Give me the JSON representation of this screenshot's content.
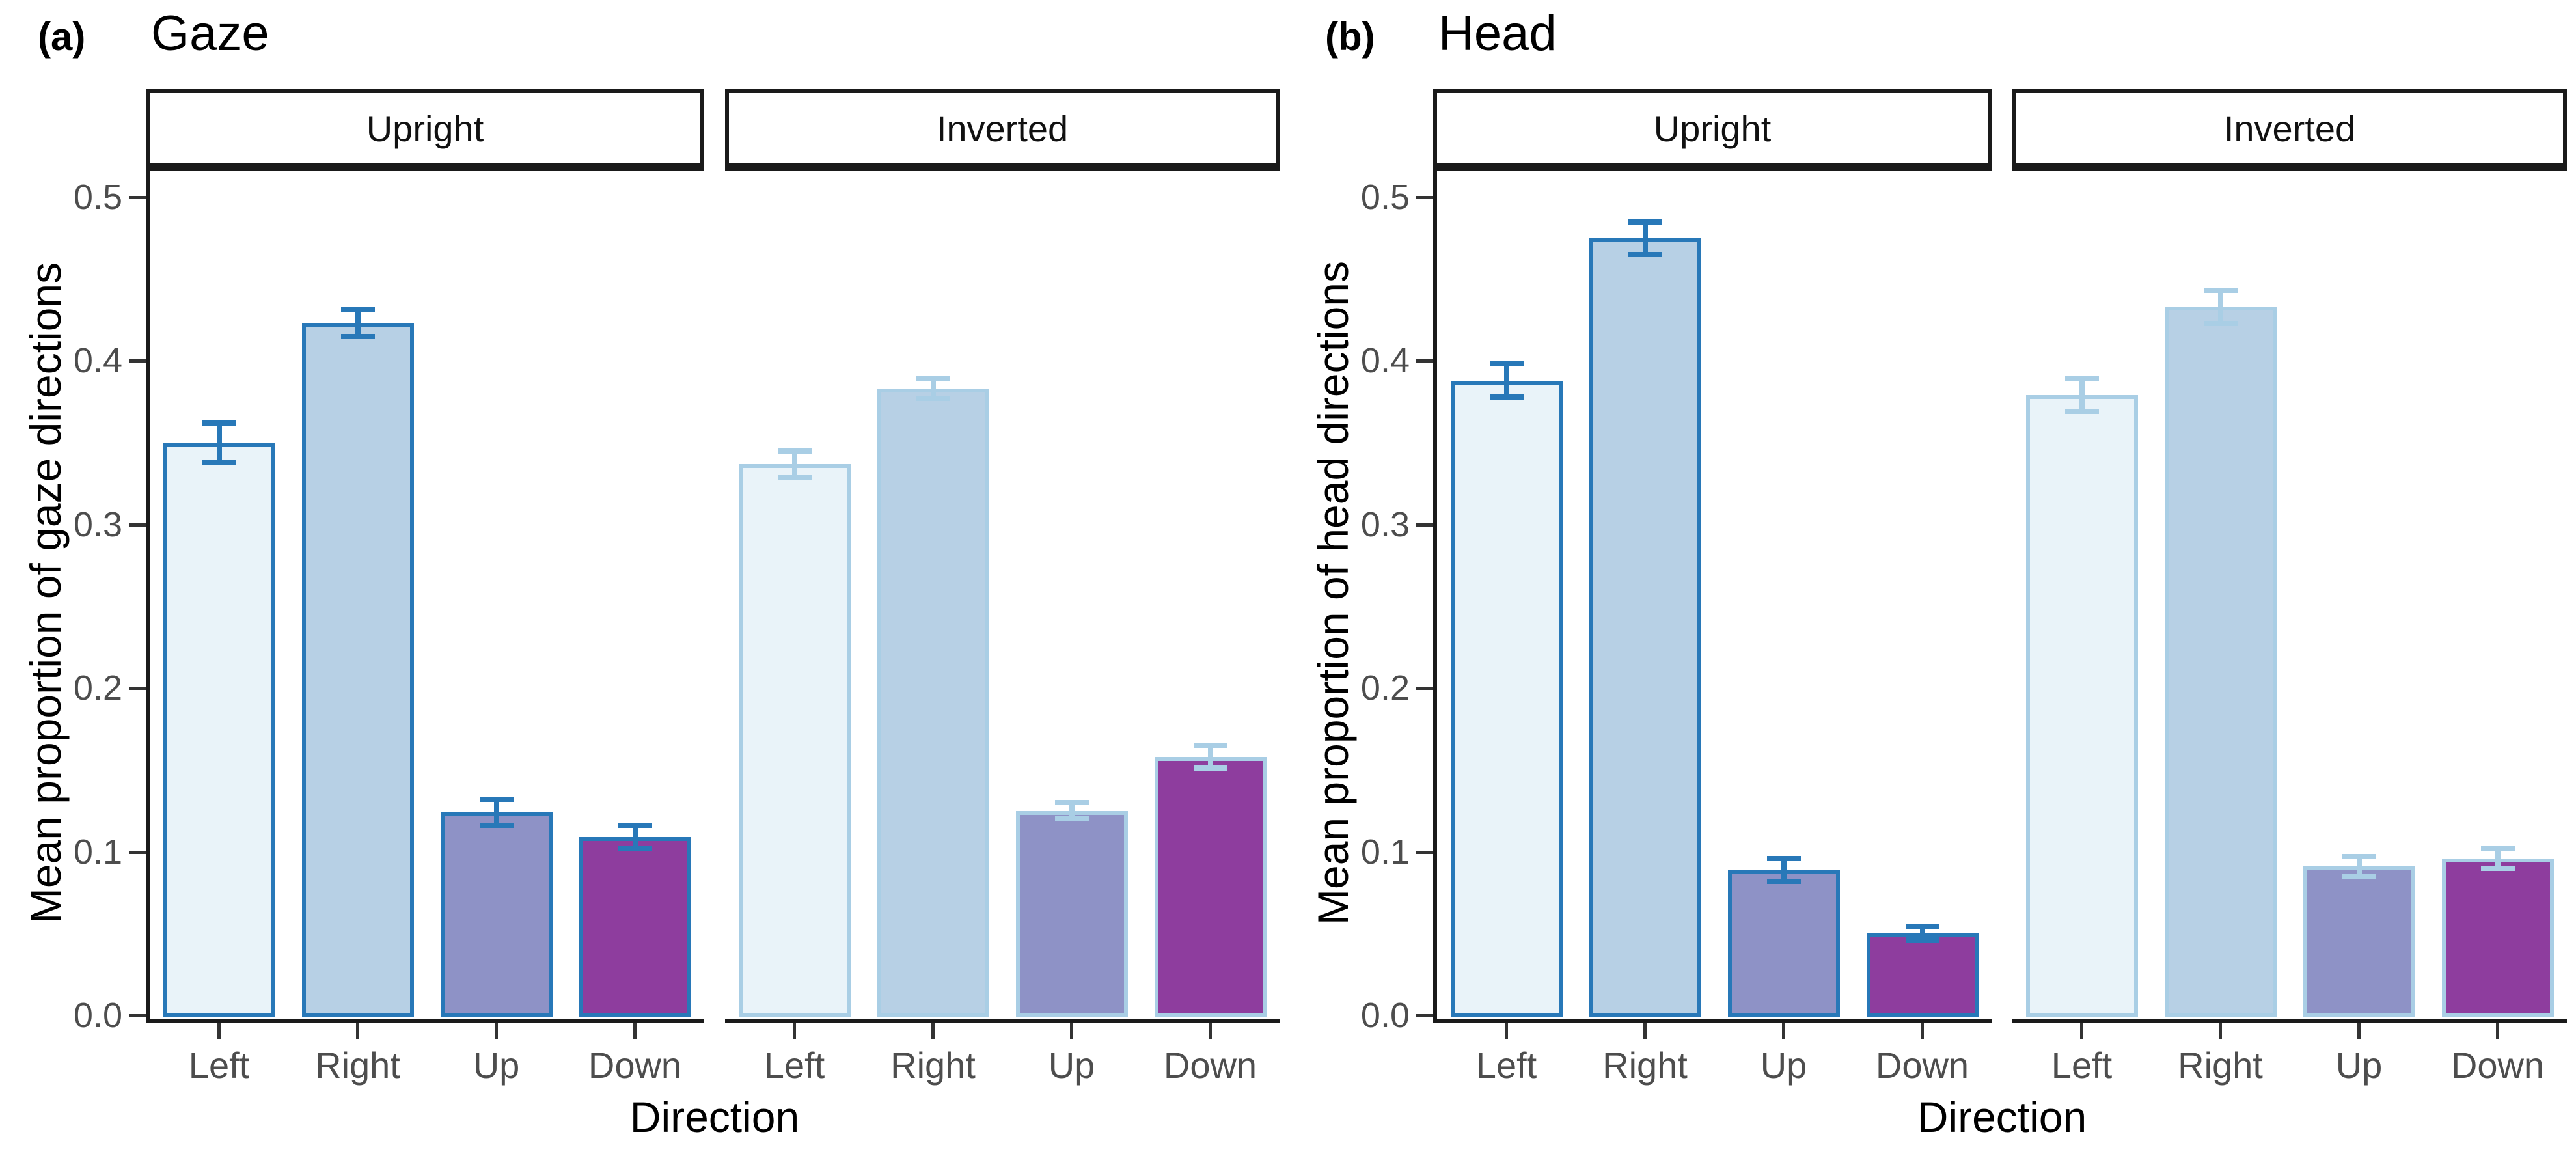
{
  "figure": {
    "background": "#ffffff"
  },
  "chart_data": {
    "type": "bar",
    "grid": false,
    "legend": "none",
    "ylim": [
      0,
      0.52
    ],
    "y_axis": {
      "ticks": [
        {
          "value": 0.0,
          "label": "0.0"
        },
        {
          "value": 0.1,
          "label": "0.1"
        },
        {
          "value": 0.2,
          "label": "0.2"
        },
        {
          "value": 0.3,
          "label": "0.3"
        },
        {
          "value": 0.4,
          "label": "0.4"
        },
        {
          "value": 0.5,
          "label": "0.5"
        }
      ]
    },
    "panels": [
      {
        "panel_label": "(a)",
        "title": "Gaze",
        "ylabel": "Mean proportion of gaze directions",
        "xlabel": "Direction",
        "categories": [
          "Left",
          "Right",
          "Up",
          "Down"
        ],
        "facets": [
          {
            "facet_label": "Upright",
            "values": [
              0.35,
              0.423,
              0.124,
              0.109
            ],
            "errors": [
              0.012,
              0.008,
              0.008,
              0.007
            ]
          },
          {
            "facet_label": "Inverted",
            "values": [
              0.337,
              0.383,
              0.125,
              0.158
            ],
            "errors": [
              0.008,
              0.006,
              0.005,
              0.007
            ]
          }
        ]
      },
      {
        "panel_label": "(b)",
        "title": "Head",
        "ylabel": "Mean proportion of head directions",
        "xlabel": "Direction",
        "categories": [
          "Left",
          "Right",
          "Up",
          "Down"
        ],
        "facets": [
          {
            "facet_label": "Upright",
            "values": [
              0.388,
              0.475,
              0.089,
              0.05
            ],
            "errors": [
              0.01,
              0.01,
              0.007,
              0.004
            ]
          },
          {
            "facet_label": "Inverted",
            "values": [
              0.379,
              0.433,
              0.091,
              0.096
            ],
            "errors": [
              0.01,
              0.01,
              0.006,
              0.006
            ]
          }
        ]
      }
    ]
  },
  "style": {
    "bar_fill_colors": [
      "#e9f3f9",
      "#b7d0e5",
      "#8e92c6",
      "#8e3d9e"
    ],
    "facet_outline_colors": [
      "#2878b8",
      "#a9cee5"
    ],
    "axis_line_color": "#1a1a1a",
    "tick_text_color": "#4d4d4d",
    "title_text_color": "#000000",
    "strip_border_color": "#1a1a1a",
    "strip_background": "#ffffff"
  }
}
